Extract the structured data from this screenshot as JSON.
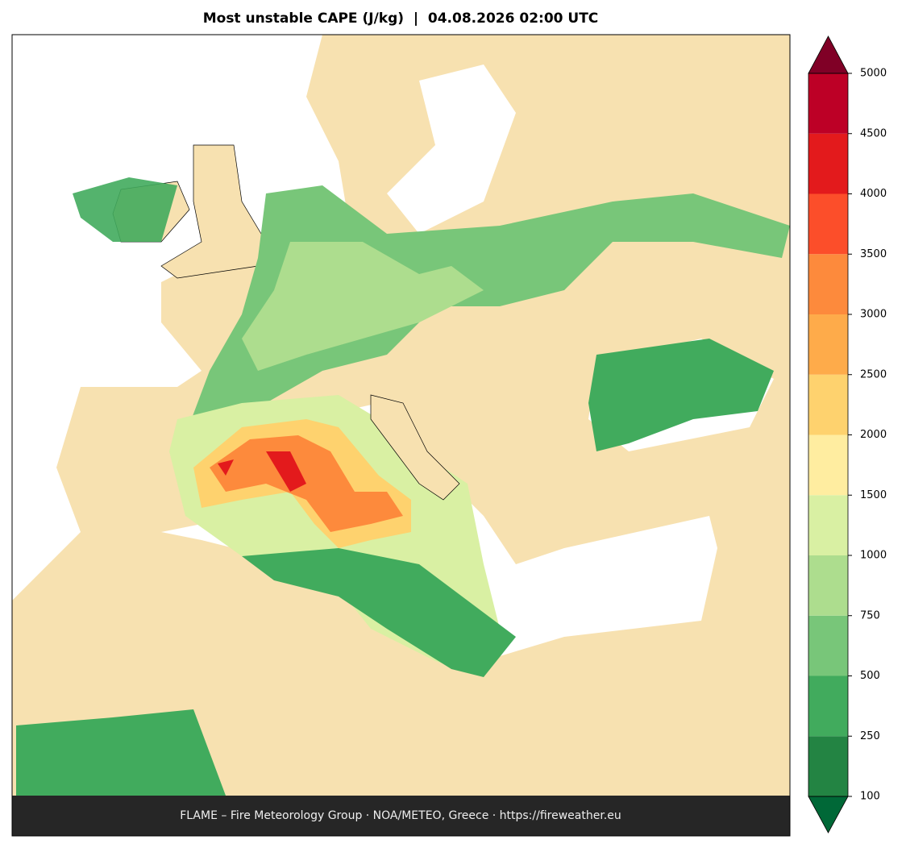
{
  "title": "Most unstable CAPE (J/kg)  |  04.08.2026 02:00 UTC",
  "footer": "FLAME – Fire Meteorology Group · NOA/METEO, Greece · https://fireweather.eu",
  "colorbar": {
    "ticks": [
      100,
      250,
      500,
      750,
      1000,
      1500,
      2000,
      2500,
      3000,
      3500,
      4000,
      4500,
      5000
    ],
    "colors": [
      "#238443",
      "#41ab5d",
      "#78c679",
      "#addd8e",
      "#d9f0a3",
      "#ffeda0",
      "#fed26e",
      "#feab4a",
      "#fd8a3c",
      "#fc4e2a",
      "#e31a1c",
      "#bd0026"
    ],
    "under_color": "#006837",
    "over_color": "#800026"
  }
}
